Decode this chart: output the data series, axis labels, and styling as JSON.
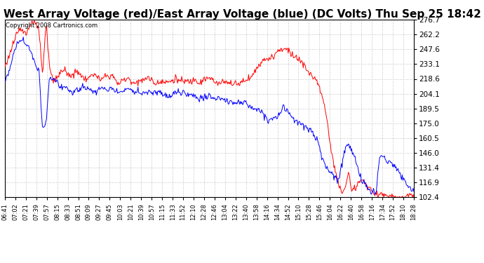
{
  "title": "West Array Voltage (red)/East Array Voltage (blue) (DC Volts) Thu Sep 25 18:42",
  "copyright": "Copyright 2008 Cartronics.com",
  "ylim": [
    102.4,
    276.7
  ],
  "yticks": [
    276.7,
    262.2,
    247.6,
    233.1,
    218.6,
    204.1,
    189.5,
    175.0,
    160.5,
    146.0,
    131.4,
    116.9,
    102.4
  ],
  "xtick_labels": [
    "06:41",
    "07:02",
    "07:21",
    "07:39",
    "07:57",
    "08:15",
    "08:33",
    "08:51",
    "09:09",
    "09:27",
    "09:45",
    "10:03",
    "10:21",
    "10:39",
    "10:57",
    "11:15",
    "11:33",
    "11:52",
    "12:10",
    "12:28",
    "12:46",
    "13:04",
    "13:22",
    "13:40",
    "13:58",
    "14:16",
    "14:34",
    "14:52",
    "15:10",
    "15:28",
    "15:46",
    "16:04",
    "16:22",
    "16:40",
    "16:58",
    "17:16",
    "17:34",
    "17:52",
    "18:10",
    "18:28"
  ],
  "background_color": "#ffffff",
  "grid_color": "#aaaaaa",
  "title_fontsize": 11,
  "red_color": "#ff0000",
  "blue_color": "#0000ff",
  "red_key": [
    230,
    238,
    248,
    258,
    265,
    268,
    265,
    270,
    276,
    272,
    265,
    220,
    276,
    230,
    215,
    220,
    222,
    228,
    225,
    222,
    222,
    225,
    222,
    220,
    218,
    220,
    222,
    220,
    218,
    220,
    220,
    222,
    220,
    218,
    219,
    218,
    220,
    218,
    215,
    218,
    218,
    220,
    218,
    216,
    215,
    218,
    216,
    214,
    216,
    218,
    218,
    218,
    218,
    216,
    215,
    218,
    218,
    216,
    218,
    218,
    218,
    216,
    215,
    216,
    216,
    215,
    214,
    215,
    216,
    216,
    218,
    220,
    224,
    228,
    232,
    236,
    238,
    240,
    242,
    245,
    248,
    250,
    248,
    245,
    242,
    238,
    235,
    232,
    228,
    224,
    220,
    215,
    205,
    190,
    170,
    150,
    130,
    115,
    108,
    110,
    125,
    108,
    112,
    118,
    120,
    115,
    110,
    108,
    106,
    105,
    104,
    103,
    103,
    102,
    102,
    102,
    102,
    103,
    103,
    104
  ],
  "blue_key": [
    215,
    225,
    235,
    248,
    255,
    258,
    255,
    248,
    240,
    232,
    225,
    168,
    178,
    220,
    218,
    215,
    212,
    210,
    208,
    205,
    205,
    208,
    210,
    210,
    208,
    206,
    205,
    206,
    208,
    210,
    210,
    210,
    208,
    206,
    205,
    206,
    208,
    208,
    206,
    205,
    205,
    206,
    206,
    204,
    203,
    204,
    203,
    202,
    203,
    205,
    205,
    205,
    204,
    202,
    200,
    200,
    200,
    200,
    200,
    200,
    200,
    200,
    200,
    198,
    197,
    196,
    195,
    194,
    195,
    195,
    194,
    192,
    192,
    188,
    188,
    185,
    182,
    178,
    178,
    180,
    185,
    190,
    190,
    185,
    182,
    178,
    175,
    172,
    170,
    168,
    162,
    155,
    145,
    135,
    130,
    125,
    120,
    118,
    135,
    150,
    155,
    148,
    138,
    130,
    120,
    115,
    110,
    108,
    106,
    140,
    145,
    140,
    138,
    135,
    130,
    125,
    120,
    115,
    110,
    108
  ]
}
